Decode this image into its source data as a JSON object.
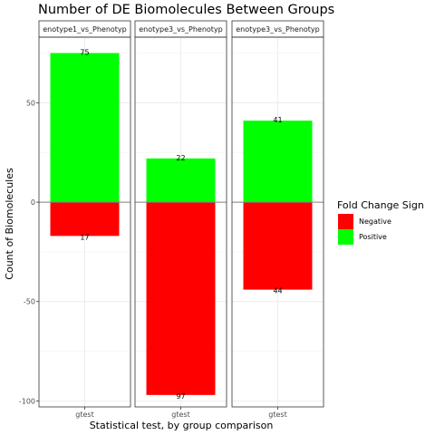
{
  "chart_data": {
    "type": "bar",
    "title": "Number of DE Biomolecules Between Groups",
    "xlabel": "Statistical test, by group comparison",
    "ylabel": "Count of Biomolecules",
    "ylim": [
      -103,
      83
    ],
    "yticks": [
      -100,
      -50,
      0,
      50
    ],
    "panels": [
      {
        "strip": "enotype1_vs_Phenotyp",
        "category": "gtest",
        "positive": 75,
        "negative": -17,
        "positive_label": "75",
        "negative_label": "17"
      },
      {
        "strip": "enotype3_vs_Phenotyp",
        "category": "gtest",
        "positive": 22,
        "negative": -97,
        "positive_label": "22",
        "negative_label": "97"
      },
      {
        "strip": "enotype3_vs_Phenotyp",
        "category": "gtest",
        "positive": 41,
        "negative": -44,
        "positive_label": "41",
        "negative_label": "44"
      }
    ],
    "legend": {
      "title": "Fold Change Sign",
      "entries": [
        {
          "label": "Negative",
          "color": "#FF0000"
        },
        {
          "label": "Positive",
          "color": "#00FF00"
        }
      ]
    }
  }
}
